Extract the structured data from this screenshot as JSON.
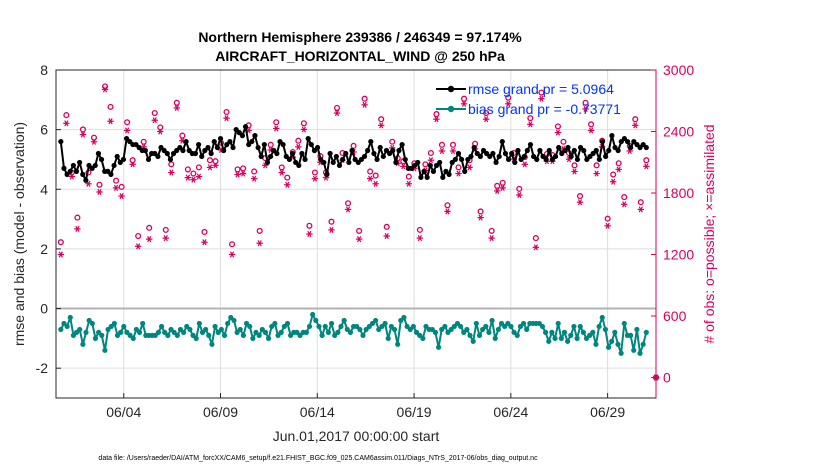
{
  "chart_data": {
    "type": "line",
    "title_line1": "Northern Hemisphere 239386 / 246349 = 97.174%",
    "title_line2": "AIRCRAFT_HORIZONTAL_WIND @ 250 hPa",
    "xlabel": "Jun.01,2017 00:00:00 start",
    "ylabel_left": "rmse and bias (model - observation)",
    "ylabel_right": "# of obs: o=possible; ×=assimilated",
    "footer": "data file: /Users/raeder/DAI/ATM_forcXX/CAM6_setup/f.e21.FHIST_BGC.f09_025.CAM6assim.011/Diags_NTrS_2017-06/obs_diag_output.nc",
    "x_range_days": [
      0.0,
      31.0
    ],
    "x_ticks": [
      {
        "day": 3.5,
        "label": "06/04"
      },
      {
        "day": 8.5,
        "label": "06/09"
      },
      {
        "day": 13.5,
        "label": "06/14"
      },
      {
        "day": 18.5,
        "label": "06/19"
      },
      {
        "day": 23.5,
        "label": "06/24"
      },
      {
        "day": 28.5,
        "label": "06/29"
      }
    ],
    "ylim_left": [
      -3,
      8
    ],
    "yticks_left": [
      "8",
      "6",
      "4",
      "2",
      "0",
      "-2"
    ],
    "ylim_right": [
      -200,
      3000
    ],
    "yticks_right": [
      "3000",
      "2400",
      "1800",
      "1200",
      "600",
      "0"
    ],
    "grid": true,
    "zero_line": 0,
    "colors": {
      "rmse": "#000000",
      "bias": "#00857f",
      "obs": "#d6005f",
      "legend_text": "#0033ff",
      "grid": "#dddddd",
      "zero": "#b3b3b3"
    },
    "legend_position": "top-right",
    "series": [
      {
        "name": "rmse grand pr = 5.0964",
        "axis": "left",
        "values": [
          5.6,
          4.7,
          4.5,
          4.6,
          4.8,
          4.6,
          4.9,
          4.5,
          4.3,
          4.8,
          4.7,
          4.8,
          5.2,
          5.0,
          4.6,
          4.6,
          4.5,
          4.8,
          5.1,
          4.9,
          5.0,
          5.7,
          5.6,
          5.5,
          5.5,
          5.4,
          5.3,
          5.3,
          5.0,
          5.2,
          5.2,
          5.1,
          5.4,
          5.3,
          5.2,
          5.0,
          5.2,
          5.3,
          5.4,
          5.3,
          5.6,
          5.3,
          5.2,
          5.2,
          5.5,
          5.1,
          5.3,
          5.4,
          5.2,
          5.6,
          5.4,
          5.7,
          5.3,
          5.5,
          5.6,
          5.4,
          6.0,
          5.9,
          5.8,
          6.1,
          5.5,
          5.6,
          5.8,
          5.4,
          5.1,
          5.5,
          4.9,
          5.1,
          5.3,
          5.2,
          5.6,
          5.5,
          5.1,
          5.0,
          5.2,
          4.9,
          4.8,
          5.2,
          5.0,
          5.7,
          5.5,
          5.3,
          5.4,
          5.0,
          4.9,
          4.5,
          5.2,
          4.9,
          5.1,
          4.8,
          5.0,
          5.2,
          4.9,
          5.3,
          5.0,
          4.9,
          5.0,
          5.1,
          5.3,
          5.6,
          5.2,
          5.0,
          5.4,
          5.1,
          5.3,
          5.2,
          5.3,
          4.9,
          5.3,
          5.5,
          5.0,
          4.7,
          4.7,
          4.8,
          4.9,
          4.4,
          4.6,
          4.4,
          4.8,
          4.6,
          4.8,
          4.9,
          4.4,
          4.6,
          4.5,
          4.9,
          5.0,
          5.2,
          5.0,
          4.6,
          5.0,
          5.1,
          5.4,
          5.2,
          5.1,
          5.3,
          5.2,
          5.1,
          5.2,
          4.9,
          5.1,
          5.6,
          5.2,
          5.0,
          5.2,
          4.9,
          5.3,
          5.0,
          5.1,
          5.3,
          5.5,
          5.1,
          5.0,
          5.3,
          5.1,
          5.0,
          5.3,
          5.0,
          5.1,
          5.4,
          5.2,
          5.3,
          5.4,
          5.1,
          5.3,
          5.0,
          5.4,
          5.3,
          5.0,
          5.1,
          5.2,
          5.3,
          5.0,
          5.6,
          5.1,
          5.3,
          5.8,
          5.4,
          5.3,
          5.6,
          5.7,
          5.6,
          5.4,
          5.6,
          5.5,
          5.4,
          5.5,
          5.4
        ]
      },
      {
        "name": "bias grand pr = -0.73771",
        "axis": "left",
        "values": [
          -0.7,
          -0.5,
          -0.6,
          -0.3,
          -0.9,
          -0.8,
          -0.7,
          -1.2,
          -0.8,
          -0.4,
          -0.5,
          -1.0,
          -0.8,
          -0.9,
          -1.4,
          -0.7,
          -0.6,
          -0.5,
          -0.9,
          -0.8,
          -0.6,
          -0.8,
          -0.9,
          -1.0,
          -0.7,
          -0.8,
          -0.5,
          -0.9,
          -0.9,
          -0.9,
          -0.9,
          -0.8,
          -0.6,
          -0.8,
          -0.9,
          -0.7,
          -0.8,
          -0.9,
          -0.7,
          -0.8,
          -0.6,
          -0.7,
          -0.9,
          -1.0,
          -0.5,
          -0.8,
          -0.7,
          -0.9,
          -1.2,
          -0.6,
          -0.8,
          -0.7,
          -0.9,
          -0.5,
          -0.3,
          -0.4,
          -0.8,
          -0.7,
          -0.9,
          -0.5,
          -0.6,
          -1.0,
          -0.8,
          -0.9,
          -0.7,
          -0.8,
          -1.0,
          -0.6,
          -0.5,
          -0.9,
          -0.8,
          -0.6,
          -0.5,
          -0.9,
          -0.8,
          -0.8,
          -0.9,
          -0.8,
          -0.8,
          -0.6,
          -0.2,
          -0.4,
          -0.6,
          -0.9,
          -0.6,
          -0.8,
          -0.5,
          -0.9,
          -0.8,
          -0.6,
          -0.4,
          -0.7,
          -0.8,
          -0.6,
          -0.6,
          -0.7,
          -0.9,
          -0.7,
          -0.6,
          -0.5,
          -0.4,
          -0.7,
          -0.6,
          -0.5,
          -1.0,
          -0.6,
          -0.7,
          -1.2,
          -0.4,
          -0.3,
          -0.6,
          -0.7,
          -0.6,
          -0.8,
          -0.9,
          -1.0,
          -0.6,
          -0.7,
          -0.7,
          -0.8,
          -1.3,
          -0.7,
          -0.6,
          -0.8,
          -0.7,
          -0.6,
          -0.5,
          -0.6,
          -0.8,
          -0.7,
          -0.9,
          -1.1,
          -0.5,
          -0.9,
          -0.7,
          -0.6,
          -0.8,
          -0.4,
          -1.0,
          -0.7,
          -0.5,
          -0.6,
          -0.5,
          -0.6,
          -0.8,
          -0.9,
          -0.6,
          -0.5,
          -0.7,
          -0.5,
          -0.5,
          -0.5,
          -0.5,
          -0.6,
          -0.8,
          -1.1,
          -0.8,
          -1.0,
          -0.5,
          -1.0,
          -0.8,
          -1.1,
          -0.9,
          -0.6,
          -1.0,
          -0.6,
          -0.8,
          -1.0,
          -0.9,
          -0.8,
          -1.2,
          -0.6,
          -0.3,
          -0.7,
          -1.3,
          -1.1,
          -0.8,
          -1.2,
          -1.5,
          -0.5,
          -0.9,
          -0.9,
          -1.4,
          -0.7,
          -1.5,
          -1.2,
          -0.8
        ]
      },
      {
        "name": "possible (o)",
        "axis": "right",
        "values": [
          1320,
          2560,
          2000,
          1560,
          2420,
          2000,
          2340,
          1880,
          2840,
          2640,
          1920,
          1860,
          2490,
          2120,
          1380,
          2300,
          1460,
          2580,
          2440,
          1440,
          2080,
          2680,
          2360,
          2030,
          1990,
          2050,
          1420,
          2120,
          2110,
          2290,
          2590,
          1300,
          2030,
          2040,
          2460,
          2010,
          1430,
          2140,
          2270,
          2490,
          2050,
          1950,
          2200,
          2310,
          2480,
          1480,
          2000,
          2160,
          2000,
          1520,
          2630,
          2190,
          1700,
          2260,
          1430,
          2720,
          2010,
          1970,
          2520,
          1470,
          2300,
          2140,
          2110,
          1960,
          2090,
          1440,
          2080,
          2190,
          2570,
          2270,
          1680,
          2270,
          2050,
          2720,
          2120,
          2280,
          1620,
          2580,
          1430,
          1870,
          1900,
          2730,
          2190,
          1840,
          2150,
          2530,
          1360,
          2780,
          2180,
          2170,
          2450,
          2300,
          2190,
          2070,
          1770,
          2680,
          2470,
          2070,
          2310,
          1550,
          1980,
          2090,
          1760,
          2260,
          2520,
          1710,
          2120
        ]
      },
      {
        "name": "assimilated (×)",
        "axis": "right",
        "values": [
          1200,
          2480,
          1960,
          1450,
          2370,
          1890,
          2300,
          1810,
          2810,
          2500,
          1850,
          1770,
          2410,
          2080,
          1280,
          2250,
          1350,
          2510,
          2400,
          1360,
          2000,
          2630,
          2310,
          1950,
          1930,
          1960,
          1320,
          2050,
          2070,
          2220,
          2530,
          1200,
          1980,
          1990,
          2410,
          1940,
          1310,
          2070,
          2220,
          2430,
          2000,
          1880,
          2150,
          2250,
          2420,
          1400,
          1940,
          2100,
          1950,
          1440,
          2580,
          2120,
          1640,
          2200,
          1350,
          2660,
          1940,
          1890,
          2460,
          1380,
          2240,
          2090,
          2060,
          1890,
          2040,
          1360,
          2020,
          2120,
          2520,
          2210,
          1620,
          2210,
          1990,
          2670,
          2050,
          2230,
          1560,
          2520,
          1360,
          1820,
          1850,
          2670,
          2130,
          1780,
          2080,
          2470,
          1270,
          2720,
          2110,
          2110,
          2390,
          2230,
          2130,
          2010,
          1710,
          2620,
          2410,
          1990,
          2250,
          1480,
          1910,
          2030,
          1690,
          2210,
          2460,
          1640,
          2060
        ]
      }
    ],
    "extra_points": [
      {
        "name": "day-31 possible",
        "day": 31.0,
        "value": 0
      },
      {
        "name": "day-31 assimilated",
        "day": 31.0,
        "value": 0
      }
    ]
  }
}
